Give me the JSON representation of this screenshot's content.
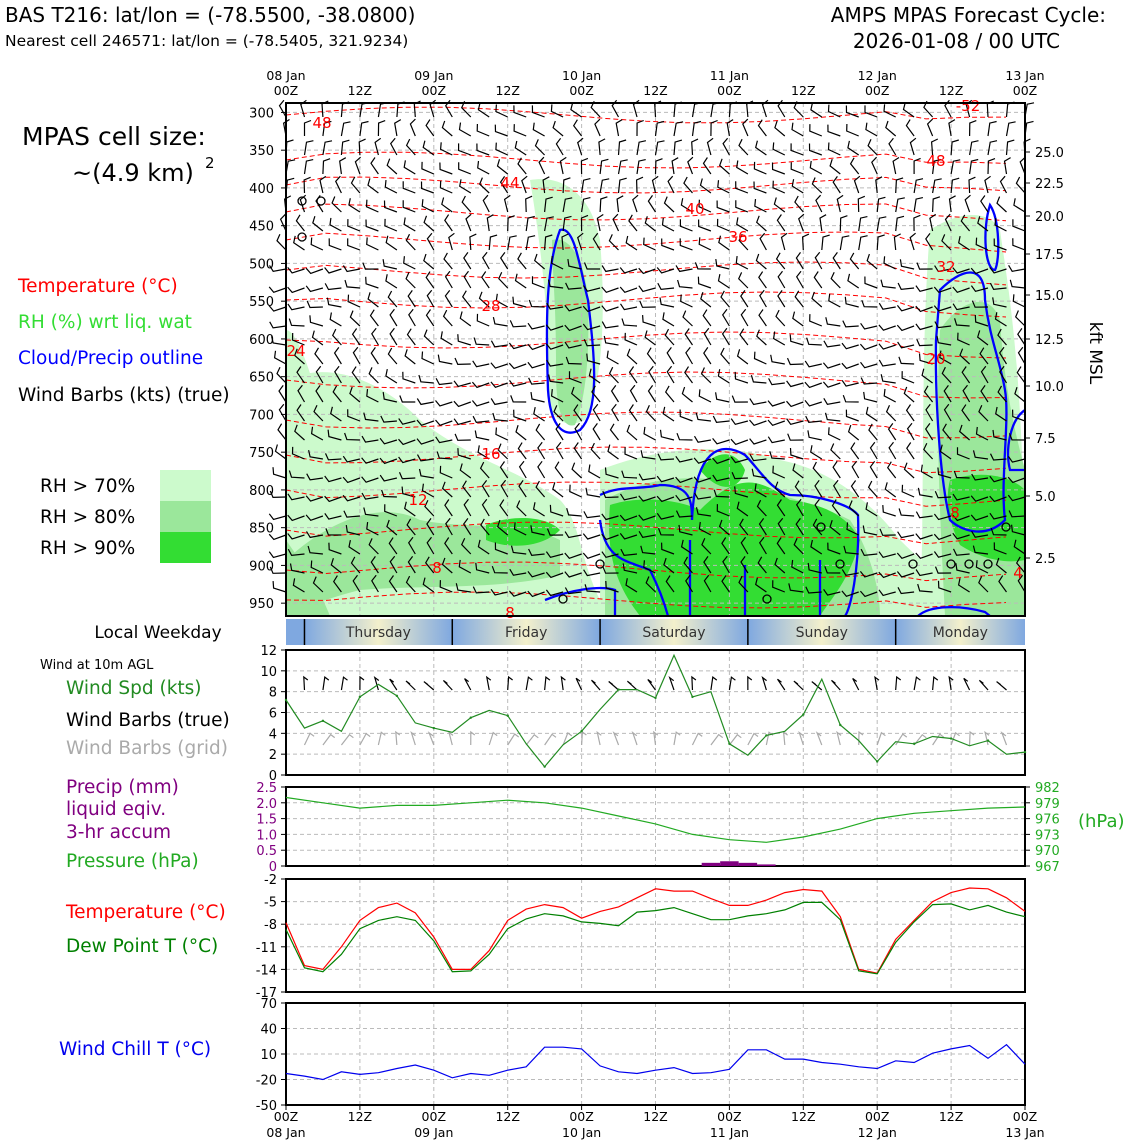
{
  "header": {
    "title_left": "BAS T216: lat/lon = (-78.5500, -38.0800)",
    "subtitle_left": "Nearest cell 246571: lat/lon = (-78.5405, 321.9234)",
    "title_right_1": "AMPS MPAS Forecast Cycle:",
    "title_right_2": "2026-01-08 / 00 UTC"
  },
  "time_axis": {
    "ticks": [
      "00Z",
      "12Z",
      "00Z",
      "12Z",
      "00Z",
      "12Z",
      "00Z",
      "12Z",
      "00Z",
      "12Z",
      "00Z"
    ],
    "dates": [
      "08 Jan",
      "",
      "09 Jan",
      "",
      "10 Jan",
      "",
      "11 Jan",
      "",
      "12 Jan",
      "",
      "13 Jan"
    ]
  },
  "cross_section": {
    "cell_size_title": "MPAS cell size:",
    "cell_size_value": "~(4.9 km)",
    "cell_size_exp": "2",
    "legend": [
      {
        "label": "Temperature (°C)",
        "color": "#ff0000"
      },
      {
        "label": "RH (%) wrt liq. wat",
        "color": "#33dd33"
      },
      {
        "label": "Cloud/Precip outline",
        "color": "#0000ff"
      },
      {
        "label": "Wind Barbs (kts) (true)",
        "color": "#000000"
      }
    ],
    "rh_legend": [
      {
        "label": "RH > 70%",
        "color": "#ccfacc"
      },
      {
        "label": "RH > 80%",
        "color": "#9be79b"
      },
      {
        "label": "RH > 90%",
        "color": "#33dd33"
      }
    ],
    "pressure_levels": [
      "300",
      "350",
      "400",
      "450",
      "500",
      "550",
      "600",
      "650",
      "700",
      "750",
      "800",
      "850",
      "900",
      "950"
    ],
    "kft_ticks": [
      "25.0",
      "22.5",
      "20.0",
      "17.5",
      "15.0",
      "12.5",
      "10.0",
      "7.5",
      "5.0",
      "2.5"
    ],
    "kft_label": "kft MSL",
    "temp_labels": [
      "48",
      "-52",
      "48",
      "44",
      "40",
      "36",
      "32",
      "28",
      "24",
      "20",
      "16",
      "12",
      "8",
      "8",
      "8",
      "4"
    ]
  },
  "weekday": {
    "title": "Local Weekday",
    "days": [
      "Thursday",
      "Friday",
      "Saturday",
      "Sunday",
      "Monday"
    ]
  },
  "wind_panel": {
    "note": "Wind at 10m AGL",
    "label_speed": "Wind Spd (kts)",
    "label_barbs_true": "Wind Barbs (true)",
    "label_barbs_grid": "Wind Barbs (grid)",
    "yticks": [
      "0",
      "2",
      "4",
      "6",
      "8",
      "10",
      "12"
    ]
  },
  "precip_panel": {
    "label_1": "Precip (mm)",
    "label_2": "liquid eqiv.",
    "label_3": "3-hr accum",
    "label_pressure": "Pressure (hPa)",
    "left_ticks": [
      "0",
      "0.5",
      "1.0",
      "1.5",
      "2.0",
      "2.5"
    ],
    "right_ticks": [
      "967",
      "970",
      "973",
      "976",
      "979",
      "982"
    ],
    "unit": "(hPa)"
  },
  "temp_panel": {
    "label_t": "Temperature (°C)",
    "label_td": "Dew Point T (°C)",
    "yticks": [
      "-17",
      "-14",
      "-11",
      "-8",
      "-5",
      "-2"
    ]
  },
  "chill_panel": {
    "label": "Wind Chill T (°C)",
    "yticks": [
      "-50",
      "-20",
      "10",
      "40",
      "70"
    ]
  },
  "colors": {
    "temp": "#ff0000",
    "dew": "#008000",
    "wind": "#228b22",
    "pressure": "#22aa22",
    "precip": "#800080",
    "chill": "#0000ee",
    "grid_barb": "#aaaaaa",
    "cloud": "#0000ff"
  },
  "chart_data": [
    {
      "type": "line",
      "title": "Wind Spd (kts) at 10m AGL",
      "x": [
        0,
        3,
        6,
        9,
        12,
        15,
        18,
        21,
        24,
        27,
        30,
        33,
        36,
        39,
        42,
        45,
        48,
        51,
        54,
        57,
        60,
        63,
        66,
        69,
        72,
        75,
        78,
        81,
        84,
        87,
        90,
        93,
        96,
        99,
        102,
        105,
        108,
        111,
        114,
        117,
        120
      ],
      "values": [
        7.2,
        4.5,
        5.2,
        4.2,
        7.5,
        8.7,
        7.6,
        5.0,
        4.5,
        4.1,
        5.5,
        6.2,
        5.7,
        3.0,
        0.8,
        2.9,
        4.2,
        6.3,
        8.2,
        8.2,
        7.4,
        11.5,
        7.5,
        8.0,
        3.0,
        1.9,
        3.8,
        4.2,
        5.8,
        9.2,
        4.8,
        3.3,
        1.3,
        3.2,
        3.0,
        3.7,
        3.5,
        2.8,
        3.3,
        2.0,
        2.2
      ],
      "ylim": [
        0,
        12
      ]
    },
    {
      "type": "line",
      "title": "Pressure (hPa)",
      "x": [
        0,
        6,
        12,
        18,
        24,
        30,
        36,
        42,
        48,
        54,
        60,
        66,
        72,
        78,
        84,
        90,
        96,
        102,
        108,
        114,
        120
      ],
      "values": [
        980.0,
        979.0,
        978.0,
        978.5,
        978.5,
        979.0,
        979.5,
        979.0,
        978.0,
        976.5,
        975.0,
        973.0,
        972.0,
        971.5,
        972.5,
        974.0,
        976.0,
        977.0,
        977.5,
        978.0,
        978.2
      ],
      "ylim": [
        967,
        982
      ]
    },
    {
      "type": "bar",
      "title": "Precip (mm) liquid eqiv. 3-hr accum",
      "x": [
        69,
        72,
        75,
        78
      ],
      "values": [
        0.1,
        0.15,
        0.1,
        0.05
      ],
      "ylim": [
        0,
        2.5
      ]
    },
    {
      "type": "line",
      "title": "Temperature and Dew Point (°C)",
      "x": [
        0,
        3,
        6,
        9,
        12,
        15,
        18,
        21,
        24,
        27,
        30,
        33,
        36,
        39,
        42,
        45,
        48,
        51,
        54,
        57,
        60,
        63,
        66,
        69,
        72,
        75,
        78,
        81,
        84,
        87,
        90,
        93,
        96,
        99,
        102,
        105,
        108,
        111,
        114,
        117,
        120
      ],
      "series": [
        {
          "name": "Temperature (°C)",
          "values": [
            -7.8,
            -13.5,
            -14.0,
            -11.0,
            -7.5,
            -5.8,
            -5.2,
            -6.5,
            -9.7,
            -14.0,
            -14.0,
            -11.5,
            -7.5,
            -6.0,
            -5.4,
            -5.8,
            -7.2,
            -6.3,
            -5.7,
            -4.5,
            -3.3,
            -3.6,
            -3.6,
            -4.6,
            -5.5,
            -5.5,
            -4.8,
            -3.8,
            -3.4,
            -3.6,
            -7.0,
            -14.0,
            -14.5,
            -10.0,
            -7.5,
            -5.0,
            -3.8,
            -3.2,
            -3.3,
            -4.5,
            -6.3
          ]
        },
        {
          "name": "Dew Point T (°C)",
          "values": [
            -8.7,
            -13.8,
            -14.3,
            -12.0,
            -8.6,
            -7.5,
            -7.0,
            -7.5,
            -10.2,
            -14.3,
            -14.2,
            -12.0,
            -8.6,
            -7.3,
            -6.6,
            -6.9,
            -7.7,
            -7.9,
            -8.2,
            -6.4,
            -6.2,
            -5.8,
            -6.6,
            -7.4,
            -7.4,
            -6.9,
            -6.6,
            -6.1,
            -5.1,
            -5.1,
            -7.4,
            -14.2,
            -14.6,
            -10.4,
            -7.7,
            -5.4,
            -5.3,
            -6.1,
            -5.5,
            -6.4,
            -7.0
          ]
        }
      ],
      "ylim": [
        -17,
        -2
      ]
    },
    {
      "type": "line",
      "title": "Wind Chill T (°C)",
      "x": [
        0,
        3,
        6,
        9,
        12,
        15,
        18,
        21,
        24,
        27,
        30,
        33,
        36,
        39,
        42,
        45,
        48,
        51,
        54,
        57,
        60,
        63,
        66,
        69,
        72,
        75,
        78,
        81,
        84,
        87,
        90,
        93,
        96,
        99,
        102,
        105,
        108,
        111,
        114,
        117,
        120
      ],
      "values": [
        -13,
        -16,
        -20,
        -11,
        -14,
        -12,
        -7,
        -3,
        -9,
        -18,
        -13,
        -15,
        -9,
        -5,
        18,
        18,
        16,
        -4,
        -11,
        -13,
        -9,
        -6,
        -13,
        -12,
        -8,
        15,
        15,
        4,
        4,
        0,
        -2,
        -5,
        -7,
        2,
        0,
        11,
        16,
        20,
        5,
        21,
        -2
      ],
      "ylim": [
        -50,
        70
      ]
    }
  ]
}
